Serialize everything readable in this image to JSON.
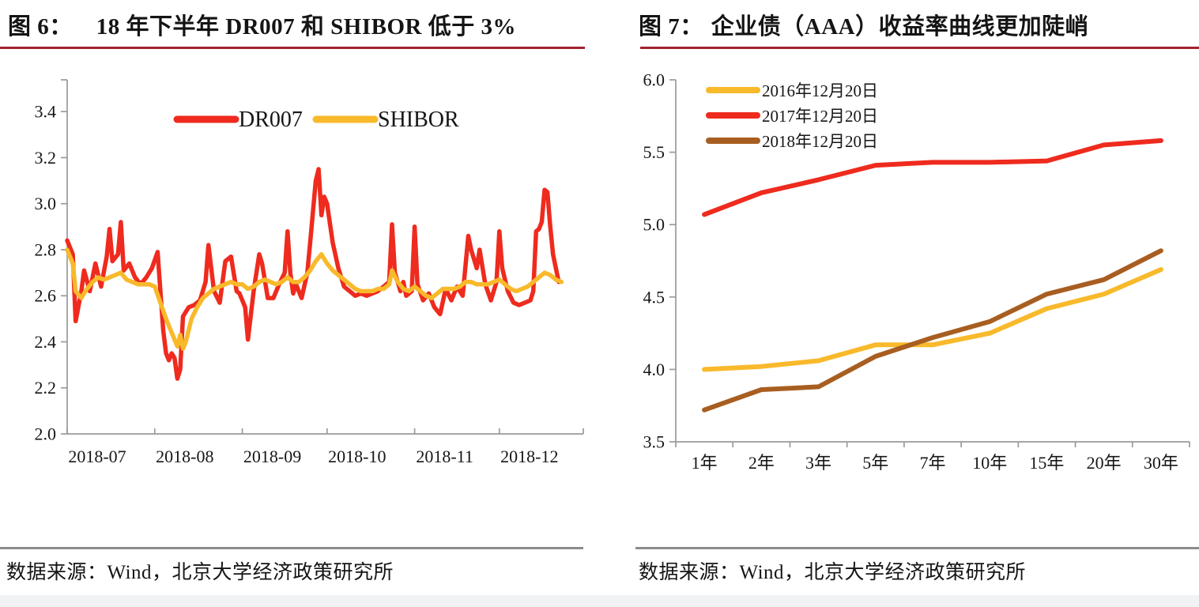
{
  "left_panel": {
    "title_prefix": "图 6：",
    "title": "18 年下半年 DR007 和 SHIBOR 低于 3%",
    "source": "数据来源：Wind，北京大学经济政策研究所"
  },
  "right_panel": {
    "title_prefix": "图 7：",
    "title": "企业债（AAA）收益率曲线更加陡峭",
    "source": "数据来源：Wind，北京大学经济政策研究所"
  },
  "colors": {
    "title_underline": "#A12330",
    "source_divider": "#8C8C8C",
    "axis": "#9A9A9A",
    "red_series": "#EE2B1E",
    "gold_series": "#F8B92B",
    "brown_series": "#A85E21",
    "bottom_strip": "#F0F2F4"
  },
  "chart_data": [
    {
      "type": "line",
      "title": "18 年下半年 DR007 和 SHIBOR 低于 3%",
      "x_unit": "days since 2018-07-01",
      "x_tick_labels": [
        "2018-07",
        "2018-08",
        "2018-09",
        "2018-10",
        "2018-11",
        "2018-12"
      ],
      "x_tick_days": [
        0,
        31,
        62,
        92,
        123,
        153
      ],
      "ylim": [
        2.0,
        3.5
      ],
      "y_ticks": [
        2.0,
        2.2,
        2.4,
        2.6,
        2.8,
        3.0,
        3.2,
        3.4
      ],
      "grid": false,
      "legend_position": "top-center",
      "series": [
        {
          "name": "DR007",
          "color": "#EE2B1E",
          "x": [
            0,
            2,
            3,
            5,
            6,
            8,
            10,
            12,
            14,
            15,
            16,
            18,
            19,
            20,
            22,
            24,
            26,
            28,
            30,
            32,
            34,
            35,
            36,
            37,
            38,
            39,
            40,
            41,
            43,
            45,
            47,
            49,
            50,
            52,
            54,
            56,
            58,
            60,
            61,
            63,
            64,
            66,
            68,
            69,
            71,
            73,
            75,
            77,
            78,
            79,
            80,
            81,
            83,
            85,
            86,
            88,
            89,
            90,
            91,
            92,
            94,
            96,
            98,
            100,
            102,
            104,
            106,
            108,
            110,
            112,
            114,
            115,
            116,
            118,
            119,
            120,
            122,
            123,
            124,
            126,
            128,
            130,
            132,
            134,
            136,
            138,
            140,
            142,
            143,
            145,
            146,
            148,
            150,
            152,
            153,
            154,
            156,
            158,
            160,
            162,
            164,
            165,
            166,
            167,
            168,
            169,
            170,
            171,
            172,
            174
          ],
          "y": [
            2.84,
            2.78,
            2.49,
            2.62,
            2.71,
            2.62,
            2.74,
            2.64,
            2.77,
            2.89,
            2.75,
            2.78,
            2.92,
            2.71,
            2.74,
            2.68,
            2.65,
            2.68,
            2.72,
            2.79,
            2.45,
            2.35,
            2.32,
            2.35,
            2.33,
            2.24,
            2.28,
            2.51,
            2.55,
            2.56,
            2.58,
            2.66,
            2.82,
            2.62,
            2.57,
            2.75,
            2.77,
            2.62,
            2.61,
            2.55,
            2.41,
            2.62,
            2.78,
            2.74,
            2.59,
            2.59,
            2.65,
            2.7,
            2.88,
            2.7,
            2.61,
            2.65,
            2.59,
            2.7,
            2.83,
            3.1,
            3.15,
            2.95,
            3.03,
            3.0,
            2.83,
            2.72,
            2.64,
            2.62,
            2.6,
            2.61,
            2.6,
            2.61,
            2.62,
            2.64,
            2.66,
            2.91,
            2.7,
            2.62,
            2.66,
            2.6,
            2.62,
            2.9,
            2.65,
            2.58,
            2.61,
            2.55,
            2.52,
            2.63,
            2.58,
            2.64,
            2.6,
            2.86,
            2.8,
            2.72,
            2.8,
            2.65,
            2.58,
            2.66,
            2.88,
            2.72,
            2.62,
            2.57,
            2.56,
            2.57,
            2.58,
            2.62,
            2.88,
            2.89,
            2.92,
            3.06,
            3.05,
            2.9,
            2.78,
            2.66
          ]
        },
        {
          "name": "SHIBOR",
          "color": "#F8B92B",
          "x": [
            0,
            2,
            3,
            5,
            7,
            9,
            11,
            13,
            15,
            17,
            19,
            21,
            23,
            25,
            27,
            29,
            31,
            33,
            35,
            37,
            39,
            40,
            41,
            42,
            44,
            46,
            48,
            50,
            52,
            54,
            56,
            58,
            60,
            62,
            64,
            66,
            68,
            70,
            72,
            74,
            76,
            78,
            80,
            82,
            84,
            86,
            88,
            90,
            92,
            94,
            96,
            98,
            100,
            102,
            104,
            106,
            108,
            110,
            112,
            114,
            115,
            117,
            119,
            121,
            123,
            125,
            127,
            129,
            131,
            133,
            135,
            137,
            139,
            141,
            143,
            145,
            147,
            149,
            151,
            153,
            155,
            157,
            159,
            161,
            163,
            165,
            167,
            169,
            171,
            173,
            175
          ],
          "y": [
            2.8,
            2.74,
            2.62,
            2.59,
            2.63,
            2.66,
            2.68,
            2.67,
            2.68,
            2.69,
            2.7,
            2.67,
            2.66,
            2.65,
            2.65,
            2.65,
            2.64,
            2.57,
            2.5,
            2.44,
            2.38,
            2.43,
            2.37,
            2.4,
            2.5,
            2.55,
            2.59,
            2.61,
            2.63,
            2.64,
            2.65,
            2.66,
            2.65,
            2.65,
            2.63,
            2.64,
            2.66,
            2.67,
            2.66,
            2.65,
            2.66,
            2.68,
            2.66,
            2.66,
            2.68,
            2.71,
            2.75,
            2.78,
            2.74,
            2.71,
            2.69,
            2.67,
            2.65,
            2.63,
            2.62,
            2.62,
            2.62,
            2.63,
            2.63,
            2.65,
            2.71,
            2.66,
            2.63,
            2.62,
            2.64,
            2.62,
            2.6,
            2.59,
            2.61,
            2.63,
            2.63,
            2.63,
            2.64,
            2.66,
            2.66,
            2.65,
            2.65,
            2.65,
            2.66,
            2.67,
            2.65,
            2.63,
            2.62,
            2.63,
            2.64,
            2.66,
            2.68,
            2.7,
            2.69,
            2.67,
            2.66
          ]
        }
      ]
    },
    {
      "type": "line",
      "title": "企业债（AAA）收益率曲线更加陡峭",
      "categories": [
        "1年",
        "2年",
        "3年",
        "5年",
        "7年",
        "10年",
        "15年",
        "20年",
        "30年"
      ],
      "ylim": [
        3.5,
        6.0
      ],
      "y_ticks": [
        3.5,
        4.0,
        4.5,
        5.0,
        5.5,
        6.0
      ],
      "grid": false,
      "legend_position": "top-left",
      "series": [
        {
          "name": "2016年12月20日",
          "color": "#F8B92B",
          "values": [
            4.0,
            4.02,
            4.06,
            4.17,
            4.17,
            4.25,
            4.42,
            4.52,
            4.69
          ]
        },
        {
          "name": "2017年12月20日",
          "color": "#EE2B1E",
          "values": [
            5.07,
            5.22,
            5.31,
            5.41,
            5.43,
            5.43,
            5.44,
            5.55,
            5.58
          ]
        },
        {
          "name": "2018年12月20日",
          "color": "#A85E21",
          "values": [
            3.72,
            3.86,
            3.88,
            4.09,
            4.22,
            4.33,
            4.52,
            4.62,
            4.82
          ]
        }
      ]
    }
  ]
}
